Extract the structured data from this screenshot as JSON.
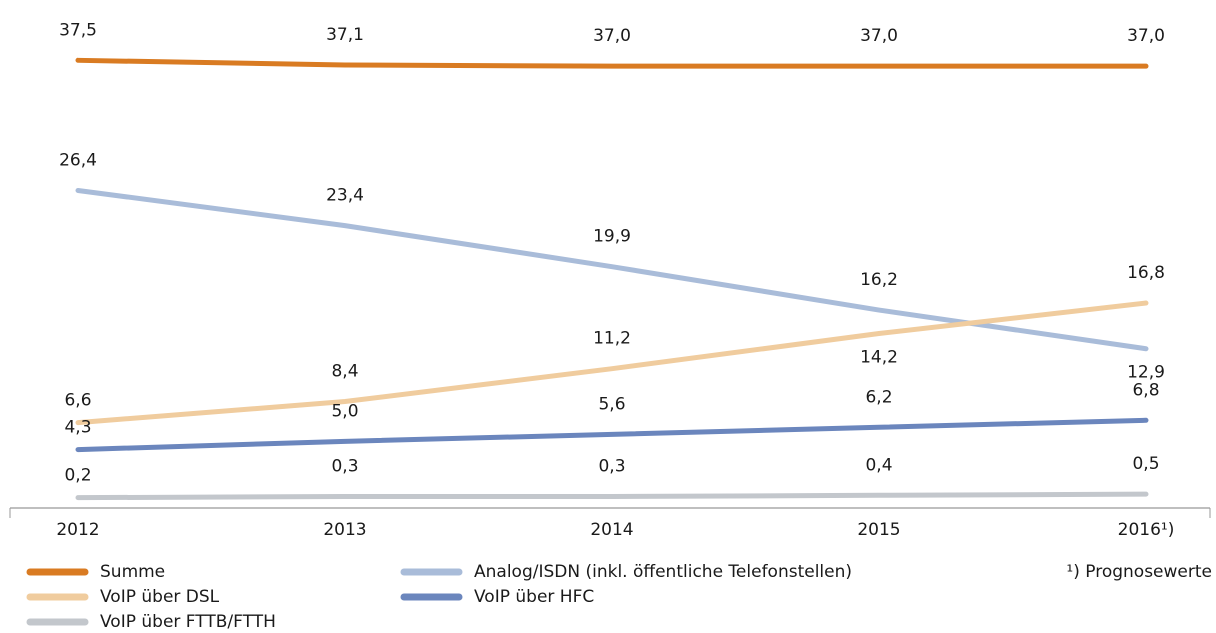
{
  "chart_data": {
    "type": "line",
    "categories": [
      "2012",
      "2013",
      "2014",
      "2015",
      "2016¹)"
    ],
    "ylim": [
      0,
      40
    ],
    "annotation": "¹) Prognosewerte",
    "series": [
      {
        "name": "Summe",
        "color": "#d97b22",
        "values": [
          37.5,
          37.1,
          37.0,
          37.0,
          37.0
        ],
        "value_labels": [
          "37,5",
          "37,1",
          "37,0",
          "37,0",
          "37,0"
        ]
      },
      {
        "name": "Analog/ISDN (inkl. öffentliche Telefonstellen)",
        "color": "#a9bcd9",
        "values": [
          26.4,
          23.4,
          19.9,
          16.2,
          12.9
        ],
        "value_labels": [
          "26,4",
          "23,4",
          "19,9",
          "16,2",
          "12,9"
        ]
      },
      {
        "name": "VoIP über DSL",
        "color": "#f0cc9e",
        "values": [
          6.6,
          8.4,
          11.2,
          14.2,
          16.8
        ],
        "value_labels": [
          "6,6",
          "8,4",
          "11,2",
          "14,2",
          "16,8"
        ]
      },
      {
        "name": "VoIP über HFC",
        "color": "#6b86bd",
        "values": [
          4.3,
          5.0,
          5.6,
          6.2,
          6.8
        ],
        "value_labels": [
          "4,3",
          "5,0",
          "5,6",
          "6,2",
          "6,8"
        ]
      },
      {
        "name": "VoIP über FTTB/FTTH",
        "color": "#c3c7cc",
        "values": [
          0.2,
          0.3,
          0.3,
          0.4,
          0.5
        ],
        "value_labels": [
          "0,2",
          "0,3",
          "0,3",
          "0,4",
          "0,5"
        ]
      }
    ]
  }
}
